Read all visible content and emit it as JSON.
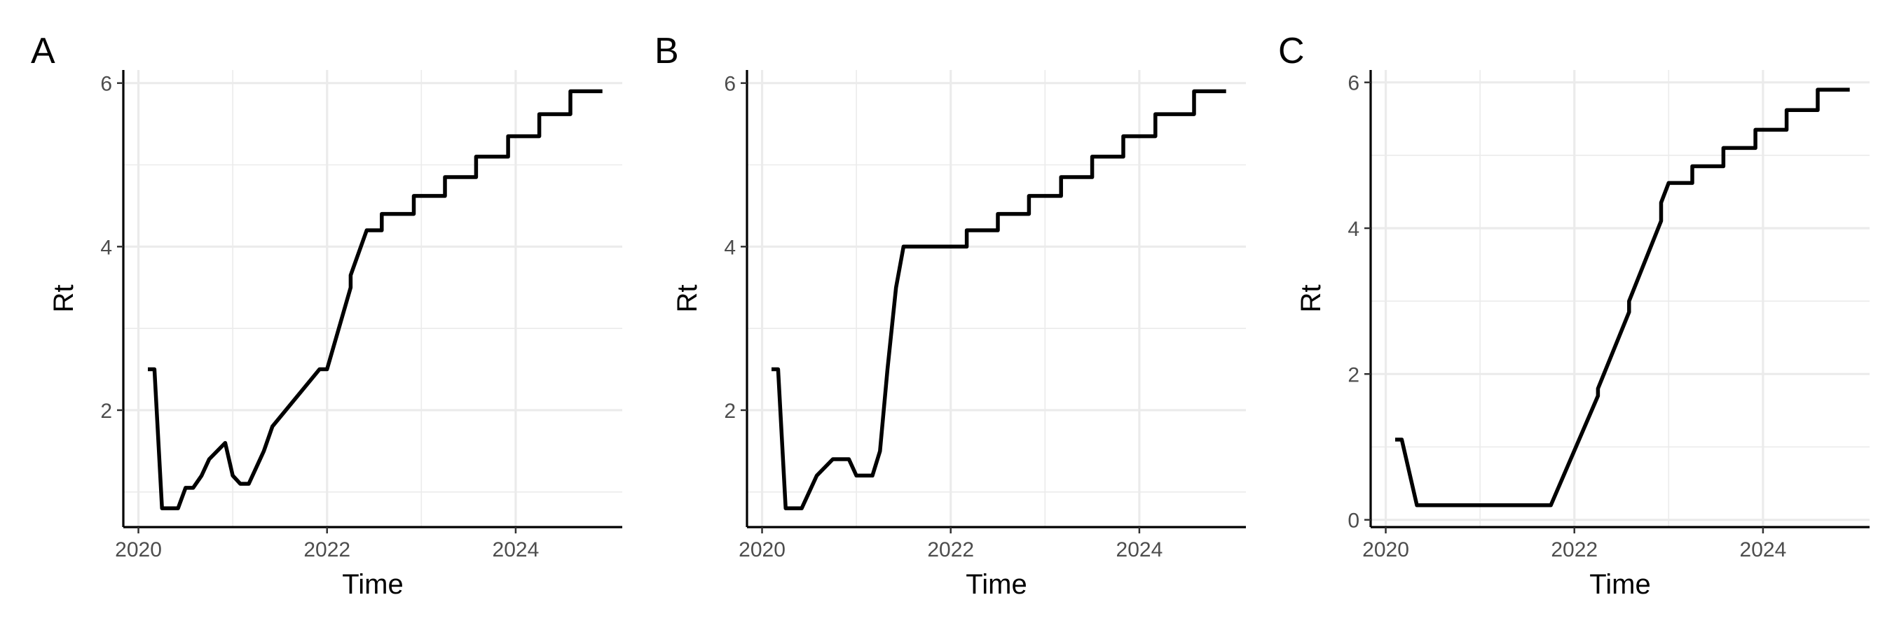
{
  "chart_data": [
    {
      "panel_label": "A",
      "type": "line",
      "xlabel": "Time",
      "ylabel": "Rt",
      "xlim": [
        2019.84,
        2025.13
      ],
      "ylim": [
        0.57,
        6.16
      ],
      "xticks": [
        2020,
        2022,
        2024
      ],
      "xtick_labels": [
        "2020",
        "2022",
        "2024"
      ],
      "xminor": [
        2021,
        2023
      ],
      "yticks": [
        2,
        4,
        6
      ],
      "ytick_labels": [
        "2",
        "4",
        "6"
      ],
      "yminor": [
        1,
        3,
        5
      ],
      "grid": true,
      "series": [
        {
          "x": [
            2020.1,
            2020.17,
            2020.17,
            2020.25,
            2020.42,
            2020.5,
            2020.58,
            2020.67,
            2020.75,
            2020.92,
            2021.0,
            2021.08,
            2021.17,
            2021.25,
            2021.33,
            2021.42,
            2021.92,
            2022.0,
            2022.25,
            2022.25,
            2022.42,
            2022.58,
            2022.58,
            2022.92,
            2022.92,
            2023.25,
            2023.25,
            2023.58,
            2023.58,
            2023.92,
            2023.92,
            2024.25,
            2024.25,
            2024.58,
            2024.58,
            2024.92
          ],
          "y": [
            2.5,
            2.5,
            2.5,
            0.8,
            0.8,
            1.05,
            1.05,
            1.2,
            1.4,
            1.6,
            1.2,
            1.1,
            1.1,
            1.3,
            1.5,
            1.8,
            2.5,
            2.5,
            3.5,
            3.65,
            4.2,
            4.2,
            4.4,
            4.4,
            4.62,
            4.62,
            4.85,
            4.85,
            5.1,
            5.1,
            5.35,
            5.35,
            5.62,
            5.62,
            5.9,
            5.9
          ]
        }
      ]
    },
    {
      "panel_label": "B",
      "type": "line",
      "xlabel": "Time",
      "ylabel": "Rt",
      "xlim": [
        2019.84,
        2025.13
      ],
      "ylim": [
        0.57,
        6.16
      ],
      "xticks": [
        2020,
        2022,
        2024
      ],
      "xtick_labels": [
        "2020",
        "2022",
        "2024"
      ],
      "xminor": [
        2021,
        2023
      ],
      "yticks": [
        2,
        4,
        6
      ],
      "ytick_labels": [
        "2",
        "4",
        "6"
      ],
      "yminor": [
        1,
        3,
        5
      ],
      "grid": true,
      "series": [
        {
          "x": [
            2020.1,
            2020.17,
            2020.17,
            2020.25,
            2020.42,
            2020.58,
            2020.75,
            2020.92,
            2021.0,
            2021.17,
            2021.25,
            2021.33,
            2021.42,
            2021.5,
            2021.58,
            2022.17,
            2022.17,
            2022.5,
            2022.5,
            2022.83,
            2022.83,
            2023.17,
            2023.17,
            2023.5,
            2023.5,
            2023.83,
            2023.83,
            2024.17,
            2024.17,
            2024.58,
            2024.58,
            2024.92
          ],
          "y": [
            2.5,
            2.5,
            2.5,
            0.8,
            0.8,
            1.2,
            1.4,
            1.4,
            1.2,
            1.2,
            1.5,
            2.5,
            3.5,
            4.0,
            4.0,
            4.0,
            4.2,
            4.2,
            4.4,
            4.4,
            4.62,
            4.62,
            4.85,
            4.85,
            5.1,
            5.1,
            5.35,
            5.35,
            5.62,
            5.62,
            5.9,
            5.9
          ]
        }
      ]
    },
    {
      "panel_label": "C",
      "type": "line",
      "xlabel": "Time",
      "ylabel": "Rt",
      "xlim": [
        2019.84,
        2025.13
      ],
      "ylim": [
        -0.1,
        6.17
      ],
      "xticks": [
        2020,
        2022,
        2024
      ],
      "xtick_labels": [
        "2020",
        "2022",
        "2024"
      ],
      "xminor": [
        2021,
        2023
      ],
      "yticks": [
        0,
        2,
        4,
        6
      ],
      "ytick_labels": [
        "0",
        "2",
        "4",
        "6"
      ],
      "yminor": [
        1,
        3,
        5
      ],
      "grid": true,
      "series": [
        {
          "x": [
            2020.1,
            2020.17,
            2020.17,
            2020.33,
            2021.75,
            2022.25,
            2022.25,
            2022.58,
            2022.58,
            2022.92,
            2022.92,
            2023.0,
            2023.25,
            2023.25,
            2023.58,
            2023.58,
            2023.92,
            2023.92,
            2024.25,
            2024.25,
            2024.58,
            2024.58,
            2024.92
          ],
          "y": [
            1.1,
            1.1,
            1.1,
            0.2,
            0.2,
            1.7,
            1.8,
            2.85,
            3.0,
            4.1,
            4.35,
            4.62,
            4.62,
            4.85,
            4.85,
            5.1,
            5.1,
            5.35,
            5.35,
            5.62,
            5.62,
            5.9,
            5.9
          ]
        }
      ]
    }
  ]
}
